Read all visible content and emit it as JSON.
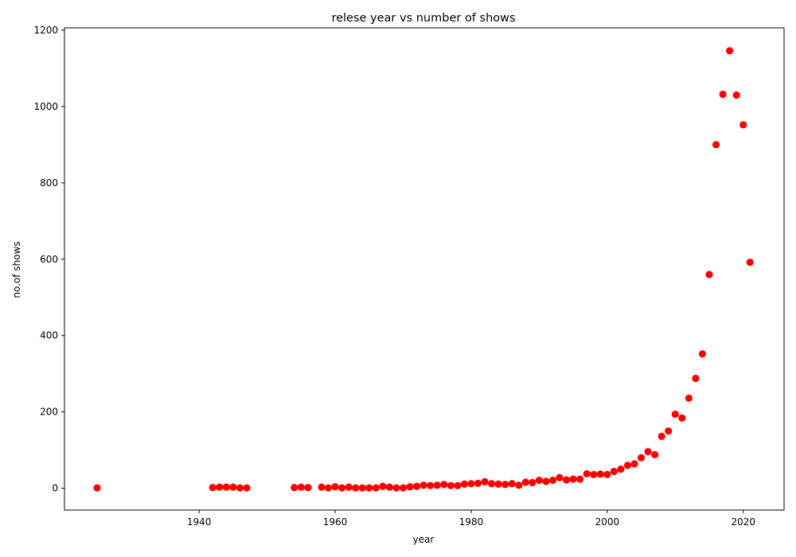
{
  "chart_data": {
    "type": "scatter",
    "title": "relese year vs number of shows",
    "xlabel": "year",
    "ylabel": "no.of shows",
    "xlim": [
      1920.2,
      2026
    ],
    "ylim": [
      -57,
      1206
    ],
    "xticks": [
      1940,
      1960,
      1980,
      2000,
      2020
    ],
    "yticks": [
      0,
      200,
      400,
      600,
      800,
      1000,
      1200
    ],
    "grid": false,
    "legend": "none",
    "marker_color": "#ff0000",
    "x": [
      1925,
      1942,
      1943,
      1944,
      1945,
      1946,
      1947,
      1954,
      1955,
      1956,
      1958,
      1959,
      1960,
      1961,
      1962,
      1963,
      1964,
      1965,
      1966,
      1967,
      1968,
      1969,
      1970,
      1971,
      1972,
      1973,
      1974,
      1975,
      1976,
      1977,
      1978,
      1979,
      1980,
      1981,
      1982,
      1983,
      1984,
      1985,
      1986,
      1987,
      1988,
      1989,
      1990,
      1991,
      1992,
      1993,
      1994,
      1995,
      1996,
      1997,
      1998,
      1999,
      2000,
      2001,
      2002,
      2003,
      2004,
      2005,
      2006,
      2007,
      2008,
      2009,
      2010,
      2011,
      2012,
      2013,
      2014,
      2015,
      2016,
      2017,
      2018,
      2019,
      2020,
      2021
    ],
    "y": [
      1,
      2,
      3,
      3,
      3,
      1,
      1,
      2,
      3,
      2,
      3,
      1,
      4,
      1,
      3,
      1,
      1,
      1,
      1,
      5,
      3,
      1,
      1,
      4,
      5,
      8,
      7,
      8,
      10,
      7,
      7,
      11,
      12,
      13,
      17,
      12,
      11,
      10,
      12,
      8,
      16,
      15,
      21,
      18,
      21,
      28,
      22,
      24,
      24,
      38,
      36,
      37,
      36,
      44,
      50,
      60,
      64,
      80,
      96,
      88,
      136,
      150,
      194,
      184,
      236,
      288,
      352,
      560,
      900,
      1032,
      1146,
      1030,
      952,
      592
    ]
  }
}
